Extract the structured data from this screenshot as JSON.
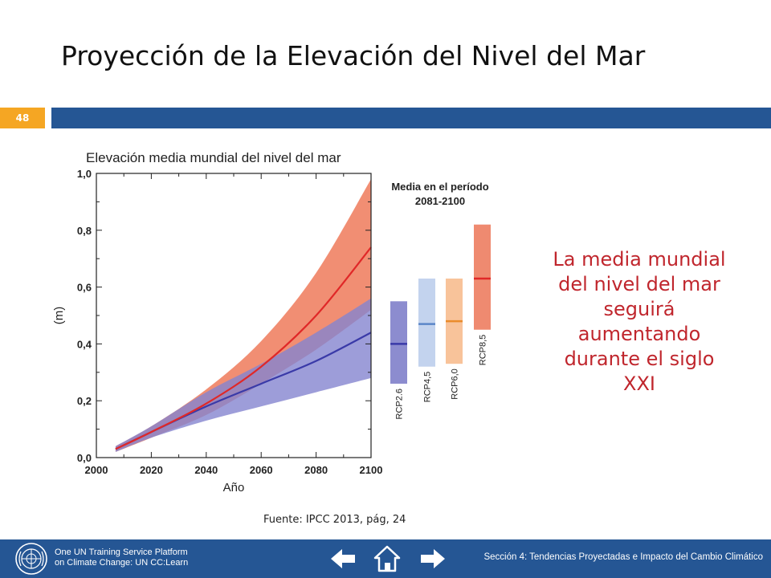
{
  "slide": {
    "title": "Proyección de la Elevación del Nivel del Mar",
    "number": "48",
    "callout": "La media mundial del nivel del mar seguirá aumentando durante el siglo XXI",
    "source": "Fuente: IPCC 2013, pág, 24"
  },
  "footer": {
    "platform_line1": "One UN Training Service Platform",
    "platform_line2": "on Climate Change: UN CC:Learn",
    "section": "Sección 4: Tendencias Proyectadas e Impacto del Cambio Climático",
    "icons": [
      "un-emblem-icon",
      "arrow-left-icon",
      "home-icon",
      "arrow-right-icon"
    ]
  },
  "colors": {
    "header_blue": "#255694",
    "slide_number_bg": "#f5a623",
    "callout_red": "#c0262d",
    "rcp26": "#3a3aa8",
    "rcp85": "#e02828"
  },
  "chart_data": {
    "type": "line",
    "title": "Elevación media mundial del nivel del mar",
    "xlabel": "Año",
    "ylabel": "(m)",
    "xlim": [
      2000,
      2100
    ],
    "ylim": [
      0.0,
      1.0
    ],
    "xticks": [
      "2000",
      "2020",
      "2040",
      "2060",
      "2080",
      "2100"
    ],
    "yticks": [
      "0,0",
      "0,2",
      "0,4",
      "0,6",
      "0,8",
      "1,0"
    ],
    "series": [
      {
        "name": "RCP2.6",
        "color": "#3a3aa8",
        "band_color": "#8585cf",
        "x": [
          2007,
          2020,
          2040,
          2060,
          2080,
          2100
        ],
        "values": [
          0.03,
          0.09,
          0.18,
          0.26,
          0.34,
          0.44
        ],
        "lower": [
          0.02,
          0.07,
          0.13,
          0.18,
          0.23,
          0.28
        ],
        "upper": [
          0.04,
          0.11,
          0.23,
          0.33,
          0.44,
          0.56
        ]
      },
      {
        "name": "RCP8.5",
        "color": "#e02828",
        "band_color": "#ef7a5a",
        "x": [
          2007,
          2020,
          2040,
          2060,
          2080,
          2100
        ],
        "values": [
          0.03,
          0.09,
          0.19,
          0.32,
          0.5,
          0.74
        ],
        "lower": [
          0.02,
          0.07,
          0.15,
          0.26,
          0.38,
          0.52
        ],
        "upper": [
          0.04,
          0.11,
          0.24,
          0.41,
          0.65,
          0.98
        ]
      }
    ],
    "period_panel": {
      "title_line1": "Media en el período",
      "title_line2": "2081-2100",
      "bars": [
        {
          "label": "RCP2.6",
          "low": 0.26,
          "high": 0.55,
          "mean": 0.4,
          "fill": "#8c8ccf",
          "line": "#3a3aa8"
        },
        {
          "label": "RCP4,5",
          "low": 0.32,
          "high": 0.63,
          "mean": 0.47,
          "fill": "#c3d3ee",
          "line": "#5b86c8"
        },
        {
          "label": "RCP6,0",
          "low": 0.33,
          "high": 0.63,
          "mean": 0.48,
          "fill": "#f8c39a",
          "line": "#ea8c2c"
        },
        {
          "label": "RCP8,5",
          "low": 0.45,
          "high": 0.82,
          "mean": 0.63,
          "fill": "#ef8a70",
          "line": "#e02828"
        }
      ]
    }
  }
}
